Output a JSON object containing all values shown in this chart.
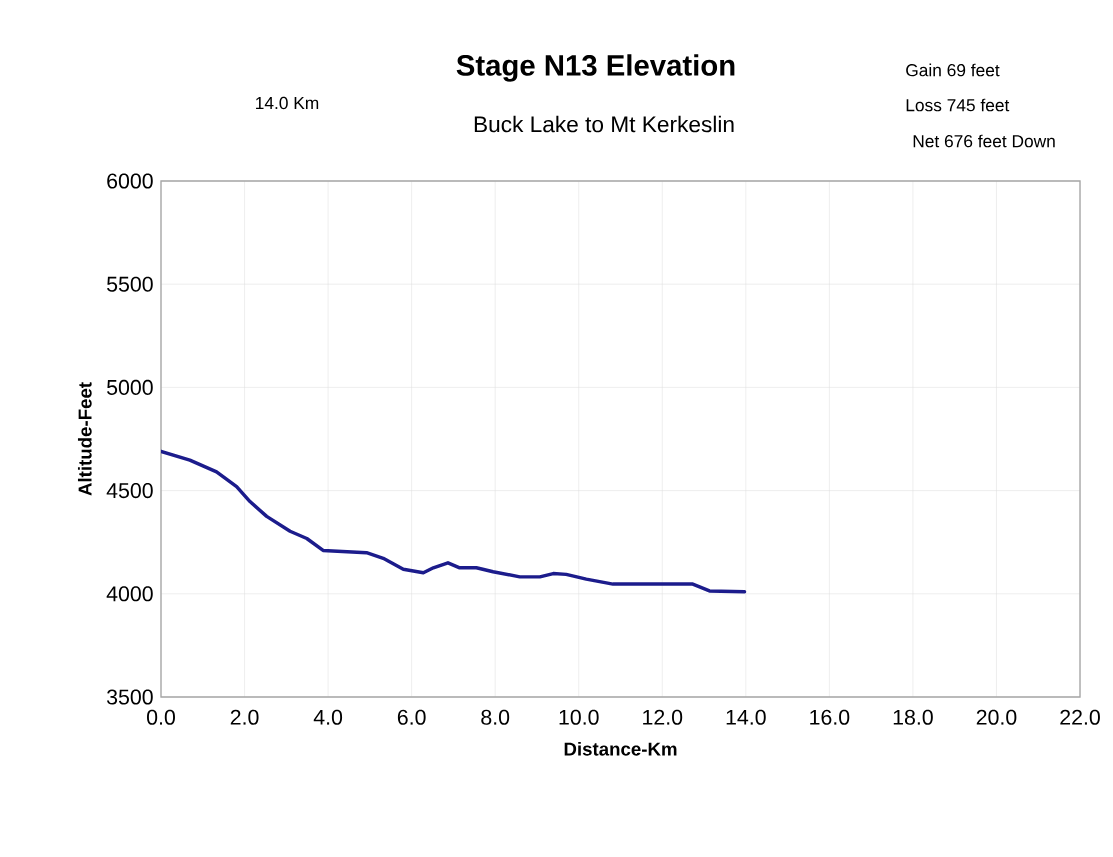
{
  "chart_data": {
    "type": "line",
    "title": "Stage N13 Elevation",
    "subtitle": "Buck Lake to Mt Kerkeslin",
    "xlabel": "Distance-Km",
    "ylabel": "Altitude-Feet",
    "annotations": [
      "14.0 Km",
      "Gain    69 feet",
      "Loss  745 feet",
      "Net     676 feet Down"
    ],
    "x": [
      0,
      0.69,
      1.33,
      1.81,
      2.13,
      2.53,
      3.09,
      3.49,
      3.88,
      4.92,
      5.32,
      5.8,
      6.28,
      6.52,
      6.87,
      7.15,
      7.55,
      7.95,
      8.59,
      9.07,
      9.39,
      9.7,
      10.18,
      10.82,
      12.73,
      13.13,
      13.97
    ],
    "values": [
      4690,
      4648,
      4591,
      4519,
      4447,
      4375,
      4303,
      4268,
      4210,
      4199,
      4172,
      4119,
      4102,
      4126,
      4150,
      4126,
      4126,
      4107,
      4082,
      4082,
      4098,
      4094,
      4071,
      4047,
      4047,
      4014,
      4010
    ],
    "color": "#1c1c8c",
    "grid": true,
    "xlim": [
      0,
      22
    ],
    "ylim": [
      3500,
      6000
    ],
    "xticks": [
      {
        "value": 0,
        "label": "0.0"
      },
      {
        "value": 2,
        "label": "2.0"
      },
      {
        "value": 4,
        "label": "4.0"
      },
      {
        "value": 6,
        "label": "6.0"
      },
      {
        "value": 8,
        "label": "8.0"
      },
      {
        "value": 10,
        "label": "10.0"
      },
      {
        "value": 12,
        "label": "12.0"
      },
      {
        "value": 14,
        "label": "14.0"
      },
      {
        "value": 16,
        "label": "16.0"
      },
      {
        "value": 18,
        "label": "18.0"
      },
      {
        "value": 20,
        "label": "20.0"
      },
      {
        "value": 22,
        "label": "22.0"
      }
    ],
    "yticks": [
      3500,
      4000,
      4500,
      5000,
      5500,
      6000
    ]
  }
}
